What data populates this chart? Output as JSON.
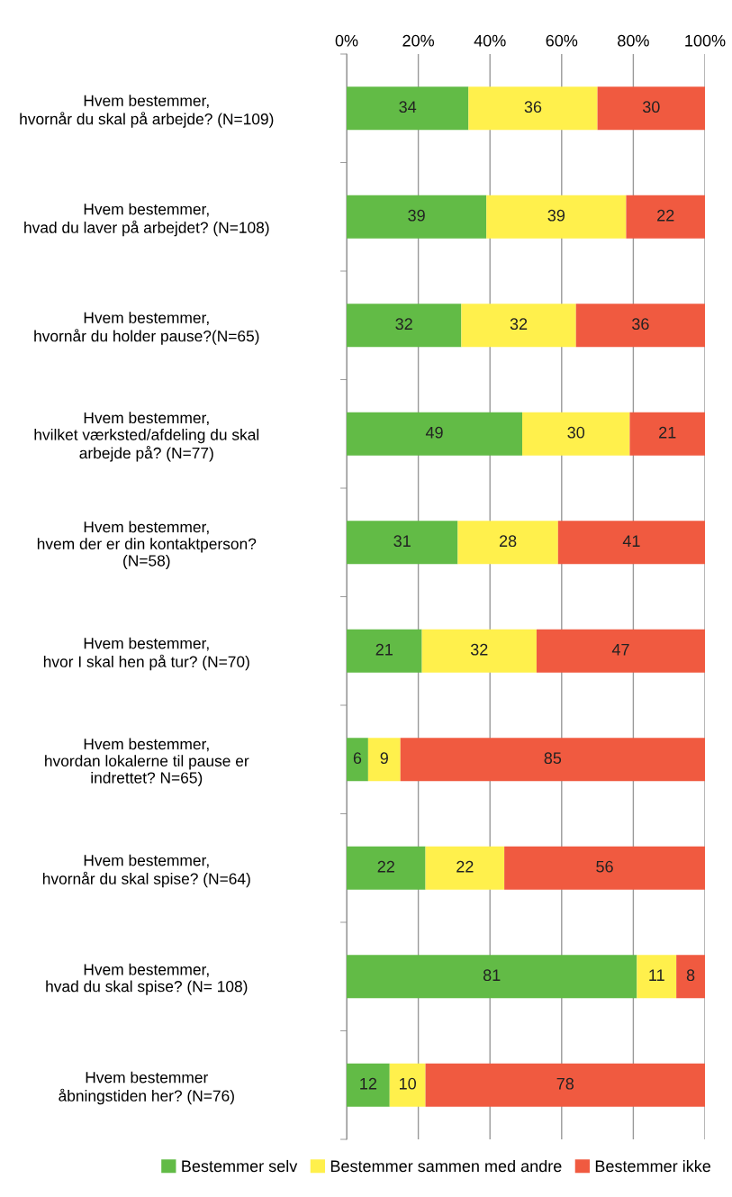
{
  "chart_data": {
    "type": "bar",
    "orientation": "horizontal",
    "stacked": true,
    "categories": [
      "Hvem bestemmer,\nhvornår du skal på arbejde? (N=109)",
      "Hvem bestemmer,\nhvad du laver på arbejdet? (N=108)",
      "Hvem bestemmer,\nhvornår du holder pause?(N=65)",
      "Hvem bestemmer,\nhvilket værksted/afdeling du skal\narbejde på? (N=77)",
      "Hvem bestemmer,\nhvem der er din kontaktperson?\n(N=58)",
      "Hvem bestemmer,\nhvor I skal hen på tur? (N=70)",
      "Hvem bestemmer,\nhvordan lokalerne til pause er\nindrettet? N=65)",
      "Hvem bestemmer,\nhvornår du skal spise? (N=64)",
      "Hvem bestemmer,\nhvad du skal spise? (N= 108)",
      "Hvem bestemmer\nåbningstiden her? (N=76)"
    ],
    "series": [
      {
        "name": "Bestemmer selv",
        "color": "#62bb46",
        "values": [
          34,
          39,
          32,
          49,
          31,
          21,
          6,
          22,
          81,
          12
        ]
      },
      {
        "name": "Bestemmer sammen med andre",
        "color": "#fff04c",
        "values": [
          36,
          39,
          32,
          30,
          28,
          32,
          9,
          22,
          11,
          10
        ]
      },
      {
        "name": "Bestemmer ikke",
        "color": "#f05a40",
        "values": [
          30,
          22,
          36,
          21,
          41,
          47,
          85,
          56,
          8,
          78
        ]
      }
    ],
    "xlim": [
      0,
      100
    ],
    "xticks": [
      {
        "value": 0,
        "label": "0%"
      },
      {
        "value": 20,
        "label": "20%"
      },
      {
        "value": 40,
        "label": "40%"
      },
      {
        "value": 60,
        "label": "60%"
      },
      {
        "value": 80,
        "label": "80%"
      },
      {
        "value": 100,
        "label": "100%"
      }
    ],
    "grid": "x",
    "legend": "bottom",
    "data_labels": true
  }
}
